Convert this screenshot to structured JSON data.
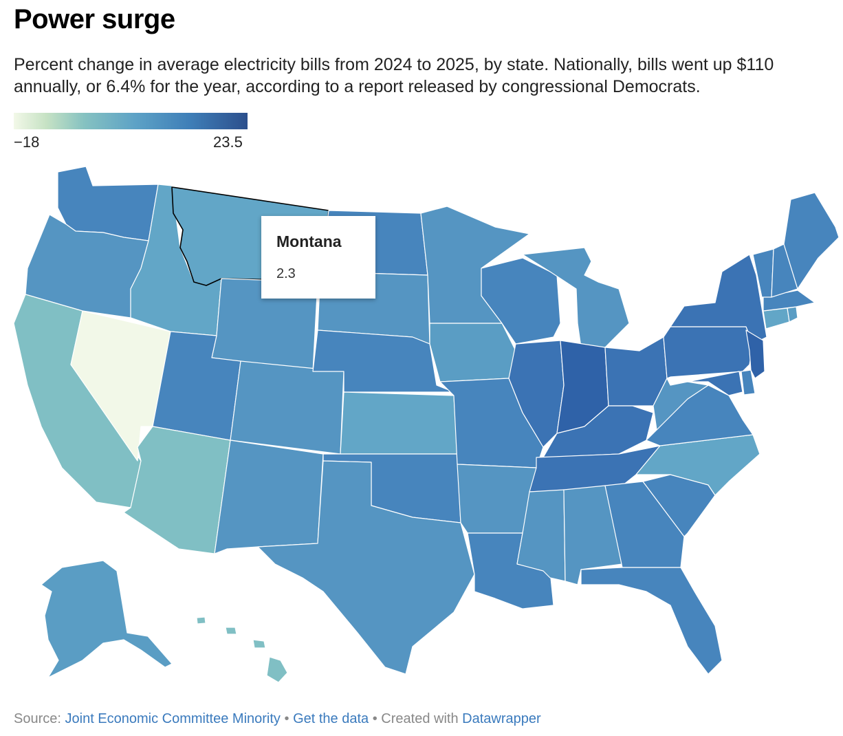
{
  "header": {
    "title": "Power surge",
    "subtitle": "Percent change in average electricity bills from 2024 to 2025, by state. Nationally, bills went up $110 annually, or 6.4% for the year, according to a report released by congressional Democrats."
  },
  "legend": {
    "min_label": "−18",
    "max_label": "23.5",
    "colors": [
      "#f2f8e8",
      "#c6e2c4",
      "#86c2c1",
      "#5da2c6",
      "#3f7fb8",
      "#2c4f8c"
    ]
  },
  "tooltip": {
    "state": "Montana",
    "value": "2.3"
  },
  "map_colors": {
    "very_low": "#f2f8e8",
    "low": "#80bfc4",
    "mid_low": "#62a6c7",
    "mid": "#5595c2",
    "mid_high": "#4785bd",
    "high": "#3b73b4",
    "very_high": "#2f62a8",
    "border": "#ffffff",
    "highlight": "#000000"
  },
  "footer": {
    "source_prefix": "Source:",
    "source_link": "Joint Economic Committee Minority",
    "sep1": "•",
    "data_link": "Get the data",
    "sep2": "•",
    "created_prefix": "Created with",
    "created_link": "Datawrapper"
  }
}
